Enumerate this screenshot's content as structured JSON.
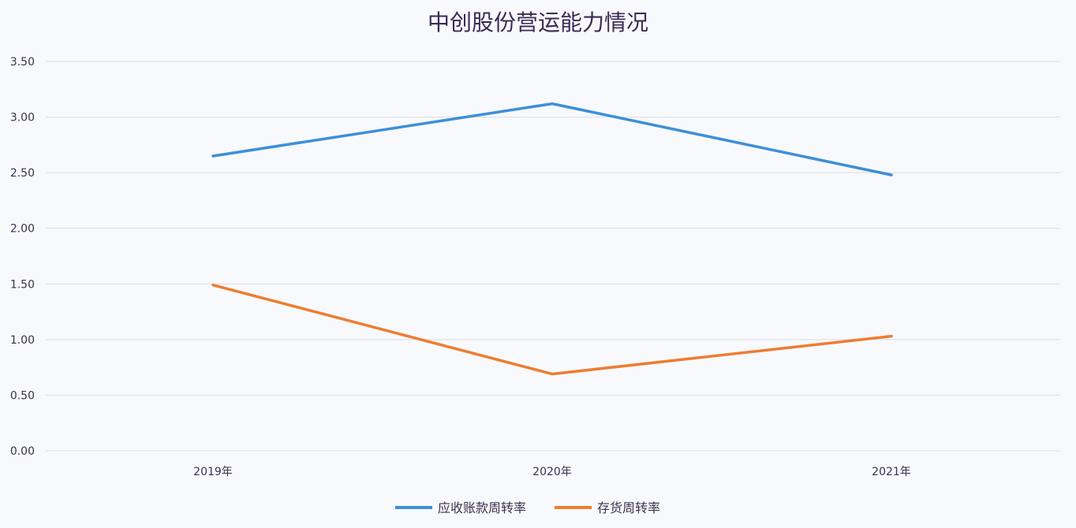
{
  "chart_data": {
    "type": "line",
    "title": "中创股份营运能力情况",
    "xlabel": "",
    "ylabel": "",
    "categories": [
      "2019年",
      "2020年",
      "2021年"
    ],
    "series": [
      {
        "name": "应收账款周转率",
        "color": "#3d8fd8",
        "values": [
          2.65,
          3.12,
          2.48
        ]
      },
      {
        "name": "存货周转率",
        "color": "#ed7d31",
        "values": [
          1.49,
          0.69,
          1.03
        ]
      }
    ],
    "yticks": [
      "0.00",
      "0.50",
      "1.00",
      "1.50",
      "2.00",
      "2.50",
      "3.00",
      "3.50"
    ],
    "ylim": [
      0,
      3.5
    ],
    "grid": true,
    "legend_position": "bottom"
  }
}
